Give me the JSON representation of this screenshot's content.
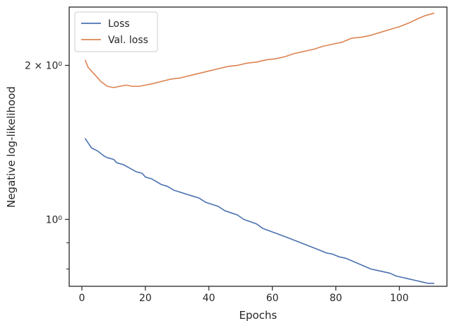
{
  "chart_data": {
    "type": "line",
    "xlabel": "Epochs",
    "ylabel": "Negative log-likelihood",
    "xlim": [
      -4,
      115
    ],
    "ylim": [
      0.74,
      2.6
    ],
    "yscale": "log",
    "x_ticks": [
      0,
      20,
      40,
      60,
      80,
      100
    ],
    "x_tick_labels": [
      "0",
      "20",
      "40",
      "60",
      "80",
      "100"
    ],
    "y_major_ticks": [
      1.0,
      2.0
    ],
    "y_major_tick_labels": [
      "10⁰",
      "2 × 10⁰"
    ],
    "y_minor_ticks": [
      0.8,
      0.9
    ],
    "legend_position": "top-left",
    "grid": false,
    "colors": {
      "loss": "#4c72b0",
      "val_loss": "#dd8452",
      "axes": "#262626"
    },
    "series": [
      {
        "name": "Loss",
        "x": [
          1,
          3,
          5,
          7,
          8,
          10,
          11,
          13,
          15,
          17,
          19,
          20,
          22,
          23,
          25,
          27,
          29,
          31,
          33,
          35,
          37,
          39,
          41,
          43,
          45,
          47,
          49,
          51,
          53,
          55,
          57,
          59,
          61,
          63,
          65,
          67,
          69,
          71,
          73,
          75,
          77,
          79,
          81,
          83,
          85,
          87,
          89,
          91,
          93,
          95,
          97,
          99,
          101,
          103,
          105,
          107,
          109,
          111
        ],
        "values": [
          1.44,
          1.38,
          1.36,
          1.33,
          1.32,
          1.31,
          1.29,
          1.28,
          1.26,
          1.24,
          1.23,
          1.21,
          1.2,
          1.19,
          1.17,
          1.16,
          1.14,
          1.13,
          1.12,
          1.11,
          1.1,
          1.08,
          1.07,
          1.06,
          1.04,
          1.03,
          1.02,
          1.0,
          0.99,
          0.98,
          0.96,
          0.95,
          0.94,
          0.93,
          0.92,
          0.91,
          0.9,
          0.89,
          0.88,
          0.87,
          0.86,
          0.855,
          0.845,
          0.84,
          0.83,
          0.82,
          0.81,
          0.8,
          0.795,
          0.79,
          0.785,
          0.775,
          0.77,
          0.765,
          0.76,
          0.755,
          0.75,
          0.75
        ]
      },
      {
        "name": "Val. loss",
        "x": [
          1,
          2,
          4,
          6,
          8,
          10,
          12,
          14,
          16,
          18,
          20,
          22,
          25,
          28,
          31,
          34,
          37,
          40,
          43,
          46,
          49,
          52,
          55,
          58,
          61,
          64,
          67,
          70,
          73,
          76,
          79,
          82,
          85,
          88,
          91,
          94,
          97,
          100,
          103,
          106,
          108,
          111
        ],
        "values": [
          2.05,
          1.98,
          1.92,
          1.86,
          1.82,
          1.81,
          1.82,
          1.83,
          1.82,
          1.82,
          1.83,
          1.84,
          1.86,
          1.88,
          1.89,
          1.91,
          1.93,
          1.95,
          1.97,
          1.99,
          2.0,
          2.02,
          2.03,
          2.05,
          2.06,
          2.08,
          2.11,
          2.13,
          2.15,
          2.18,
          2.2,
          2.22,
          2.26,
          2.27,
          2.29,
          2.32,
          2.35,
          2.38,
          2.42,
          2.47,
          2.5,
          2.53
        ]
      }
    ]
  }
}
